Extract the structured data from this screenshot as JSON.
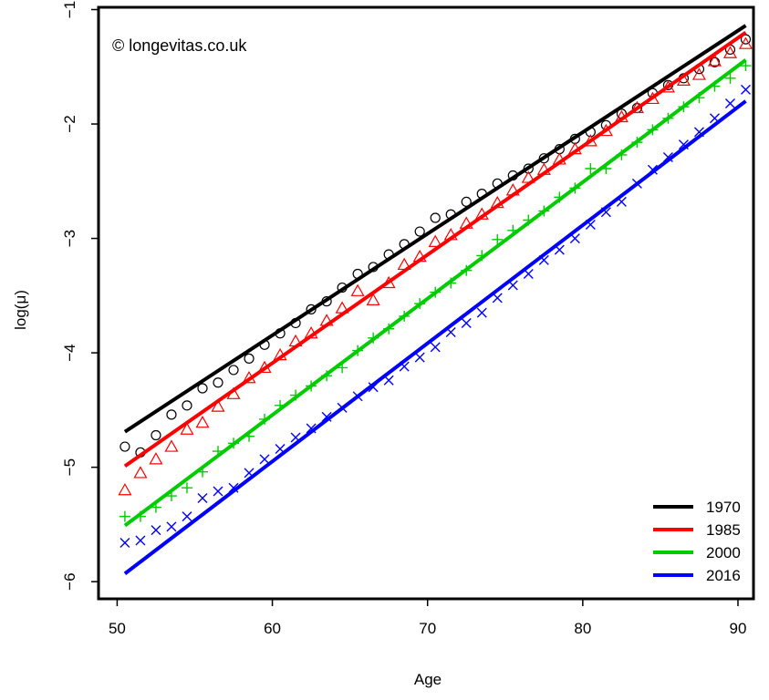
{
  "chart_data": {
    "type": "line",
    "annotation": "© longevitas.co.uk",
    "xlabel": "Age",
    "ylabel": "log(μ)",
    "xlim": [
      48.8,
      91.0
    ],
    "ylim": [
      -6.15,
      -0.98
    ],
    "xticks": [
      50,
      60,
      70,
      80,
      90
    ],
    "yticks": [
      -1,
      -2,
      -3,
      -4,
      -5,
      -6
    ],
    "legend_position": "bottom-right",
    "series": [
      {
        "name": "1970",
        "color": "#000000",
        "marker": "circle",
        "fit": {
          "x": [
            50.5,
            90.5
          ],
          "y": [
            -4.69,
            -1.14
          ]
        },
        "points_x": [
          50.5,
          51.5,
          52.5,
          53.5,
          54.5,
          55.5,
          56.5,
          57.5,
          58.5,
          59.5,
          60.5,
          61.5,
          62.5,
          63.5,
          64.5,
          65.5,
          66.5,
          67.5,
          68.5,
          69.5,
          70.5,
          71.5,
          72.5,
          73.5,
          74.5,
          75.5,
          76.5,
          77.5,
          78.5,
          79.5,
          80.5,
          81.5,
          82.5,
          83.5,
          84.5,
          85.5,
          86.5,
          87.5,
          88.5,
          89.5,
          90.5
        ],
        "points_y": [
          -4.82,
          -4.87,
          -4.72,
          -4.54,
          -4.46,
          -4.31,
          -4.26,
          -4.15,
          -4.05,
          -3.93,
          -3.83,
          -3.74,
          -3.62,
          -3.55,
          -3.43,
          -3.31,
          -3.25,
          -3.14,
          -3.05,
          -2.94,
          -2.82,
          -2.79,
          -2.68,
          -2.61,
          -2.52,
          -2.45,
          -2.39,
          -2.3,
          -2.22,
          -2.13,
          -2.07,
          -2.01,
          -1.91,
          -1.86,
          -1.73,
          -1.66,
          -1.6,
          -1.52,
          -1.46,
          -1.35,
          -1.26
        ]
      },
      {
        "name": "1985",
        "color": "#ff0000",
        "marker": "triangle",
        "fit": {
          "x": [
            50.5,
            90.5
          ],
          "y": [
            -4.99,
            -1.2
          ]
        },
        "points_x": [
          50.5,
          51.5,
          52.5,
          53.5,
          54.5,
          55.5,
          56.5,
          57.5,
          58.5,
          59.5,
          60.5,
          61.5,
          62.5,
          63.5,
          64.5,
          65.5,
          66.5,
          67.5,
          68.5,
          69.5,
          70.5,
          71.5,
          72.5,
          73.5,
          74.5,
          75.5,
          76.5,
          77.5,
          78.5,
          79.5,
          80.5,
          81.5,
          82.5,
          83.5,
          84.5,
          85.5,
          86.5,
          87.5,
          88.5,
          89.5,
          90.5
        ],
        "points_y": [
          -5.2,
          -5.05,
          -4.93,
          -4.82,
          -4.67,
          -4.61,
          -4.47,
          -4.36,
          -4.22,
          -4.13,
          -4.02,
          -3.9,
          -3.83,
          -3.72,
          -3.61,
          -3.46,
          -3.54,
          -3.39,
          -3.23,
          -3.16,
          -3.03,
          -2.97,
          -2.87,
          -2.79,
          -2.69,
          -2.58,
          -2.47,
          -2.4,
          -2.31,
          -2.22,
          -2.15,
          -2.06,
          -1.94,
          -1.86,
          -1.78,
          -1.68,
          -1.62,
          -1.57,
          -1.45,
          -1.38,
          -1.3
        ]
      },
      {
        "name": "2000",
        "color": "#00cc00",
        "marker": "plus",
        "fit": {
          "x": [
            50.5,
            90.5
          ],
          "y": [
            -5.51,
            -1.44
          ]
        },
        "points_x": [
          50.5,
          51.5,
          52.5,
          53.5,
          54.5,
          55.5,
          56.5,
          57.5,
          58.5,
          59.5,
          60.5,
          61.5,
          62.5,
          63.5,
          64.5,
          65.5,
          66.5,
          67.5,
          68.5,
          69.5,
          70.5,
          71.5,
          72.5,
          73.5,
          74.5,
          75.5,
          76.5,
          77.5,
          78.5,
          79.5,
          80.5,
          81.5,
          82.5,
          83.5,
          84.5,
          85.5,
          86.5,
          87.5,
          88.5,
          89.5,
          90.5
        ],
        "points_y": [
          -5.43,
          -5.43,
          -5.35,
          -5.25,
          -5.18,
          -5.04,
          -4.86,
          -4.79,
          -4.73,
          -4.58,
          -4.46,
          -4.37,
          -4.29,
          -4.2,
          -4.13,
          -3.98,
          -3.87,
          -3.79,
          -3.68,
          -3.57,
          -3.47,
          -3.39,
          -3.28,
          -3.15,
          -3.01,
          -2.93,
          -2.84,
          -2.76,
          -2.64,
          -2.56,
          -2.39,
          -2.39,
          -2.27,
          -2.16,
          -2.05,
          -1.95,
          -1.85,
          -1.77,
          -1.67,
          -1.6,
          -1.49
        ]
      },
      {
        "name": "2016",
        "color": "#0000ff",
        "marker": "x",
        "fit": {
          "x": [
            50.5,
            90.5
          ],
          "y": [
            -5.93,
            -1.8
          ]
        },
        "points_x": [
          50.5,
          51.5,
          52.5,
          53.5,
          54.5,
          55.5,
          56.5,
          57.5,
          58.5,
          59.5,
          60.5,
          61.5,
          62.5,
          63.5,
          64.5,
          65.5,
          66.5,
          67.5,
          68.5,
          69.5,
          70.5,
          71.5,
          72.5,
          73.5,
          74.5,
          75.5,
          76.5,
          77.5,
          78.5,
          79.5,
          80.5,
          81.5,
          82.5,
          83.5,
          84.5,
          85.5,
          86.5,
          87.5,
          88.5,
          89.5,
          90.5
        ],
        "points_y": [
          -5.66,
          -5.64,
          -5.55,
          -5.52,
          -5.43,
          -5.27,
          -5.21,
          -5.18,
          -5.05,
          -4.93,
          -4.84,
          -4.74,
          -4.66,
          -4.56,
          -4.48,
          -4.38,
          -4.3,
          -4.24,
          -4.12,
          -4.04,
          -3.95,
          -3.82,
          -3.74,
          -3.65,
          -3.52,
          -3.41,
          -3.31,
          -3.19,
          -3.1,
          -3.0,
          -2.88,
          -2.77,
          -2.68,
          -2.52,
          -2.4,
          -2.29,
          -2.18,
          -2.07,
          -1.95,
          -1.82,
          -1.7
        ]
      }
    ]
  }
}
